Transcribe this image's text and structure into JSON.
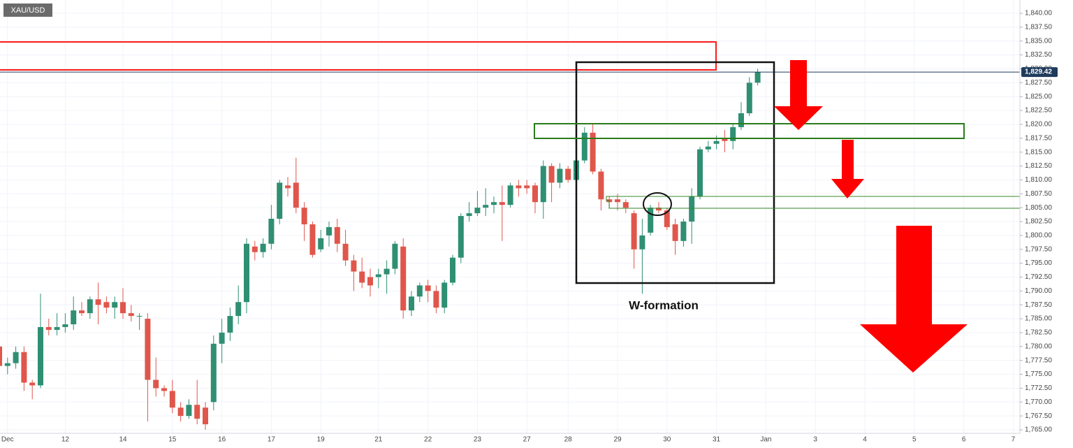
{
  "chart_data": {
    "type": "candlestick",
    "title": "XAU/USD",
    "annotation": "W-formation",
    "up_color": "#2f8f73",
    "down_color": "#e0564b",
    "grid": true,
    "categories": [
      null,
      "Dec",
      null,
      null,
      null,
      null,
      null,
      null,
      "12",
      null,
      null,
      null,
      null,
      null,
      null,
      "14",
      null,
      null,
      null,
      null,
      null,
      "15",
      null,
      null,
      null,
      null,
      null,
      "16",
      null,
      null,
      null,
      null,
      null,
      "17",
      null,
      null,
      null,
      null,
      null,
      "19",
      null,
      null,
      null,
      null,
      null,
      null,
      "21",
      null,
      null,
      null,
      null,
      null,
      "22",
      null,
      null,
      null,
      null,
      null,
      "23",
      null,
      null,
      null,
      null,
      null,
      "27",
      null,
      null,
      null,
      null,
      "28",
      null,
      null,
      null,
      null,
      null,
      "29",
      null,
      null,
      null,
      null,
      null,
      "30",
      null,
      null,
      null,
      null,
      null,
      "31",
      null,
      null,
      null,
      null,
      null,
      "Jan",
      null,
      null,
      null,
      null,
      null,
      "3",
      null,
      null,
      null,
      null,
      null,
      "4",
      null,
      null,
      null,
      null,
      null,
      "5",
      null,
      null,
      null,
      null,
      null,
      "6",
      null,
      null,
      null,
      null,
      null,
      "7"
    ],
    "open": [
      1780,
      1776.5,
      1777,
      1779,
      1773.5,
      1773,
      1783.5,
      1783,
      1783.5,
      1784,
      1786.5,
      1786,
      1788.5,
      1788,
      1787,
      1788,
      1786,
      1785.5,
      1785,
      1774,
      1772.5,
      1772,
      1769,
      1767.5,
      1769.5,
      1769,
      1770,
      1780.5,
      1782.5,
      1785.5,
      1788,
      1798,
      1797,
      1798.5,
      1803,
      1809,
      1809.5,
      1805,
      1802,
      1797.5,
      1800,
      1801.5,
      1798.5,
      1795.5,
      1793.5,
      1792.5,
      1792.5,
      1793,
      1794,
      1798,
      1786.5,
      1789,
      1791,
      1790,
      1787,
      1791.5,
      1796,
      1803.5,
      1804,
      1805,
      1805.5,
      1806,
      1805.5,
      1809,
      1809,
      1809,
      1806,
      1812.5,
      1809.5,
      1812,
      1810,
      1813.5,
      1818.5,
      1811.5,
      1806.5,
      1806.5,
      1806,
      1804,
      1797.5,
      1800.5,
      1805,
      1804.5,
      1802,
      1799,
      1802.5,
      1807,
      1815.5,
      1816.5,
      1817.5,
      1817,
      1819.5,
      1822,
      1827.5,
      null,
      null,
      null,
      null,
      null,
      null,
      null,
      null,
      null,
      null,
      null,
      null,
      null,
      null,
      null,
      null,
      null,
      null,
      null,
      null,
      null,
      null,
      null,
      null,
      null,
      null,
      null,
      null,
      null,
      null,
      null
    ],
    "high": [
      1781,
      1778,
      1780,
      1780,
      1774,
      1789.5,
      1785,
      1786,
      1786,
      1789,
      1788,
      1789,
      1791.5,
      1789,
      1789,
      1790.5,
      1787.5,
      1786,
      1786,
      1778,
      1773,
      1774,
      1770,
      1770.5,
      1774,
      1770,
      1782,
      1785,
      1787,
      1791,
      1799.5,
      1799,
      1799.5,
      1805.5,
      1810,
      1810.5,
      1814,
      1806,
      1802.5,
      1801,
      1802.5,
      1803,
      1801,
      1796.5,
      1796,
      1794,
      1794,
      1795.5,
      1799,
      1799.5,
      1790,
      1791.5,
      1792,
      1791,
      1792,
      1796.5,
      1804,
      1806,
      1808,
      1808.5,
      1807,
      1809,
      1809.5,
      1810,
      1810,
      1809.5,
      1813.5,
      1813,
      1813,
      1812.5,
      1814,
      1819.5,
      1820,
      1812,
      1807,
      1807.5,
      1806.5,
      1804.5,
      1803,
      1805.5,
      1806,
      1805,
      1803,
      1803,
      1808.5,
      1816,
      1817,
      1818,
      1819,
      1820,
      1824,
      1828.5,
      1830,
      null,
      null,
      null,
      null,
      null,
      null,
      null,
      null,
      null,
      null,
      null,
      null,
      null,
      null,
      null,
      null,
      null,
      null,
      null,
      null,
      null,
      null,
      null,
      null,
      null,
      null,
      null,
      null,
      null,
      null,
      null
    ],
    "low": [
      1775,
      1775,
      1776,
      1772,
      1770.5,
      1772.5,
      1782,
      1782,
      1782.5,
      1783,
      1785.5,
      1785,
      1784,
      1786,
      1785,
      1785,
      1784.5,
      1783,
      1766.5,
      1771,
      1771,
      1768,
      1766.5,
      1767,
      1766,
      1765,
      1768.5,
      1777,
      1781,
      1784,
      1786,
      1795.5,
      1796,
      1797.5,
      1802,
      1807,
      1804,
      1799,
      1796,
      1797,
      1798,
      1797,
      1794.5,
      1790,
      1790.5,
      1789,
      1790.5,
      1789.5,
      1793,
      1785,
      1785.5,
      1788,
      1788,
      1786,
      1786,
      1791,
      1795,
      1802.5,
      1803.5,
      1803.5,
      1804,
      1799,
      1805,
      1807,
      1807.5,
      1804,
      1803,
      1806,
      1808.5,
      1809.5,
      1809.5,
      1813,
      1811,
      1804.5,
      1805,
      1804.5,
      1804,
      1794,
      1789.5,
      1800,
      1804,
      1801,
      1796.5,
      1798,
      1798.5,
      1806.5,
      1815,
      1815.5,
      1815,
      1815.5,
      1819,
      1821.5,
      1827,
      null,
      null,
      null,
      null,
      null,
      null,
      null,
      null,
      null,
      null,
      null,
      null,
      null,
      null,
      null,
      null,
      null,
      null,
      null,
      null,
      null,
      null,
      null,
      null,
      null,
      null,
      null,
      null,
      null,
      null,
      null
    ],
    "close": [
      1776.5,
      1777,
      1779,
      1773.5,
      1773,
      1783.5,
      1783,
      1783.5,
      1784,
      1786.5,
      1786,
      1788.5,
      1787.5,
      1787,
      1788,
      1786,
      1785.5,
      1785.5,
      1774,
      1772.5,
      1772,
      1769,
      1767.5,
      1769.5,
      1767,
      1766,
      1780.5,
      1782.5,
      1785.5,
      1788,
      1798.5,
      1797,
      1798.5,
      1803,
      1809.5,
      1808.5,
      1805,
      1802,
      1796.5,
      1799.5,
      1801.5,
      1798.5,
      1795.5,
      1793.5,
      1791.5,
      1791,
      1793,
      1794,
      1798.5,
      1786.5,
      1789,
      1791,
      1790,
      1787,
      1791.5,
      1796,
      1803.5,
      1804,
      1805,
      1805.5,
      1806,
      1805.5,
      1809,
      1808.5,
      1808.5,
      1806,
      1812.5,
      1809.5,
      1812,
      1810,
      1813.5,
      1818.5,
      1811.5,
      1806.5,
      1806,
      1806,
      1805,
      1797.5,
      1800,
      1805,
      1804.5,
      1801.5,
      1799,
      1802.5,
      1807,
      1815.5,
      1816,
      1817,
      1817,
      1819.5,
      1822,
      1827.5,
      1829.42,
      null,
      null,
      null,
      null,
      null,
      null,
      null,
      null,
      null,
      null,
      null,
      null,
      null,
      null,
      null,
      null,
      null,
      null,
      null,
      null,
      null,
      null,
      null,
      null,
      null,
      null,
      null,
      null,
      null,
      null,
      null
    ],
    "last_price": {
      "value": 1829.42,
      "label": "1,829.42"
    },
    "ylim": [
      1765,
      1840
    ],
    "yticks": [
      {
        "value": 1765,
        "label": "1,765.00"
      },
      {
        "value": 1767.5,
        "label": "1,767.50"
      },
      {
        "value": 1770,
        "label": "1,770.00"
      },
      {
        "value": 1772.5,
        "label": "1,772.50"
      },
      {
        "value": 1775,
        "label": "1,775.00"
      },
      {
        "value": 1777.5,
        "label": "1,777.50"
      },
      {
        "value": 1780,
        "label": "1,780.00"
      },
      {
        "value": 1782.5,
        "label": "1,782.50"
      },
      {
        "value": 1785,
        "label": "1,785.00"
      },
      {
        "value": 1787.5,
        "label": "1,787.50"
      },
      {
        "value": 1790,
        "label": "1,790.00"
      },
      {
        "value": 1792.5,
        "label": "1,792.50"
      },
      {
        "value": 1795,
        "label": "1,795.00"
      },
      {
        "value": 1797.5,
        "label": "1,797.50"
      },
      {
        "value": 1800,
        "label": "1,800.00"
      },
      {
        "value": 1802.5,
        "label": "1,802.50"
      },
      {
        "value": 1805,
        "label": "1,805.00"
      },
      {
        "value": 1807.5,
        "label": "1,807.50"
      },
      {
        "value": 1810,
        "label": "1,810.00"
      },
      {
        "value": 1812.5,
        "label": "1,812.50"
      },
      {
        "value": 1815,
        "label": "1,815.00"
      },
      {
        "value": 1817.5,
        "label": "1,817.50"
      },
      {
        "value": 1820,
        "label": "1,820.00"
      },
      {
        "value": 1822.5,
        "label": "1,822.50"
      },
      {
        "value": 1825,
        "label": "1,825.00"
      },
      {
        "value": 1827.5,
        "label": "1,827.50"
      },
      {
        "value": 1830,
        "label": "1,830.00"
      },
      {
        "value": 1832.5,
        "label": "1,832.50"
      },
      {
        "value": 1835,
        "label": "1,835.00"
      },
      {
        "value": 1837.5,
        "label": "1,837.50"
      },
      {
        "value": 1840,
        "label": "1,840.00"
      }
    ]
  }
}
